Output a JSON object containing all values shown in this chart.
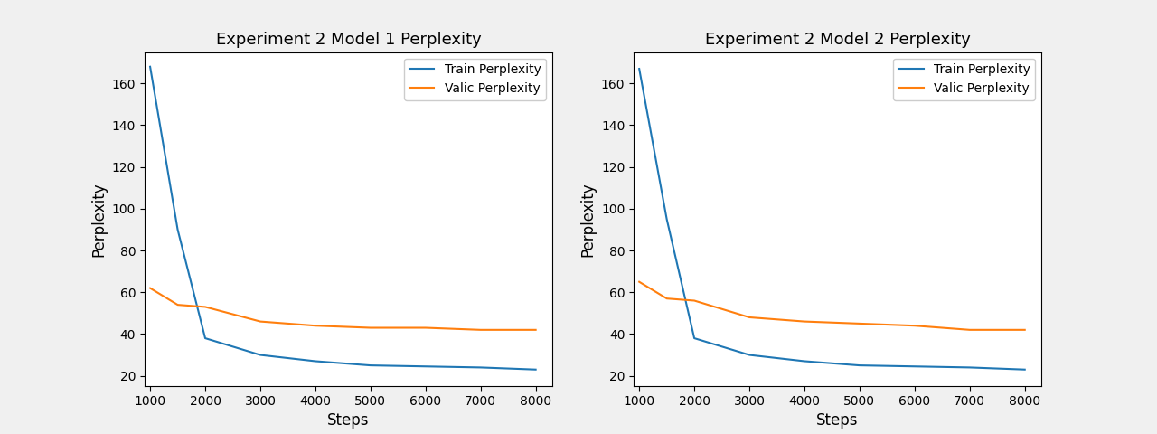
{
  "model1": {
    "title": "Experiment 2 Model 1 Perplexity",
    "train_steps": [
      1000,
      1500,
      2000,
      3000,
      4000,
      5000,
      6000,
      7000,
      8000
    ],
    "train_perplexity": [
      168,
      90,
      38,
      30,
      27,
      25,
      24.5,
      24,
      23
    ],
    "valid_steps": [
      1000,
      1500,
      2000,
      3000,
      4000,
      5000,
      6000,
      7000,
      8000
    ],
    "valid_perplexity": [
      62,
      54,
      53,
      46,
      44,
      43,
      43,
      42,
      42
    ]
  },
  "model2": {
    "title": "Experiment 2 Model 2 Perplexity",
    "train_steps": [
      1000,
      1500,
      2000,
      3000,
      4000,
      5000,
      6000,
      7000,
      8000
    ],
    "train_perplexity": [
      167,
      95,
      38,
      30,
      27,
      25,
      24.5,
      24,
      23
    ],
    "valid_steps": [
      1000,
      1500,
      2000,
      3000,
      4000,
      5000,
      6000,
      7000,
      8000
    ],
    "valid_perplexity": [
      65,
      57,
      56,
      48,
      46,
      45,
      44,
      42,
      42
    ]
  },
  "train_color": "#1f77b4",
  "valid_color": "#ff7f0e",
  "xlabel": "Steps",
  "ylabel": "Perplexity",
  "train_label": "Train Perplexity",
  "valid_label": "Valic Perplexity",
  "ylim": [
    15,
    175
  ],
  "xlim": [
    900,
    8300
  ],
  "xticks": [
    1000,
    2000,
    3000,
    4000,
    5000,
    6000,
    7000,
    8000
  ],
  "fig_facecolor": "#f0f0f0"
}
